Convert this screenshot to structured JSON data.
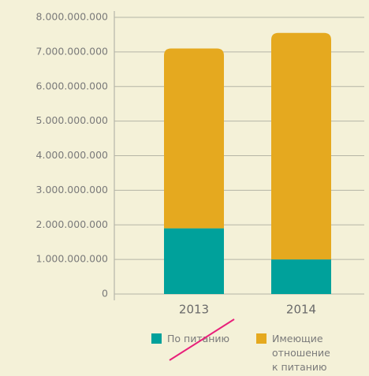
{
  "chart_data": {
    "type": "stacked_bar",
    "categories": [
      "2013",
      "2014"
    ],
    "series": [
      {
        "name": "По питанию",
        "color": "#00a19b",
        "values": [
          1900000000,
          1000000000
        ]
      },
      {
        "name": "Имеющие отношение к питанию",
        "color": "#e5a91f",
        "values": [
          5200000000,
          6550000000
        ]
      }
    ],
    "ylim": [
      0,
      8000000000
    ],
    "yticks": [
      0,
      {
        "value": 1000000000,
        "label": "1.000.000.000"
      },
      {
        "value": 2000000000,
        "label": "2.000.000.000"
      },
      {
        "value": 3000000000,
        "label": "3.000.000.000"
      },
      {
        "value": 4000000000,
        "label": "4.000.000.000"
      },
      {
        "value": 5000000000,
        "label": "5.000.000.000"
      },
      {
        "value": 6000000000,
        "label": "6.000.000.000"
      },
      {
        "value": 7000000000,
        "label": "7.000.000.000"
      },
      {
        "value": 8000000000,
        "label": "8.000.000.000"
      }
    ],
    "grid": true
  }
}
